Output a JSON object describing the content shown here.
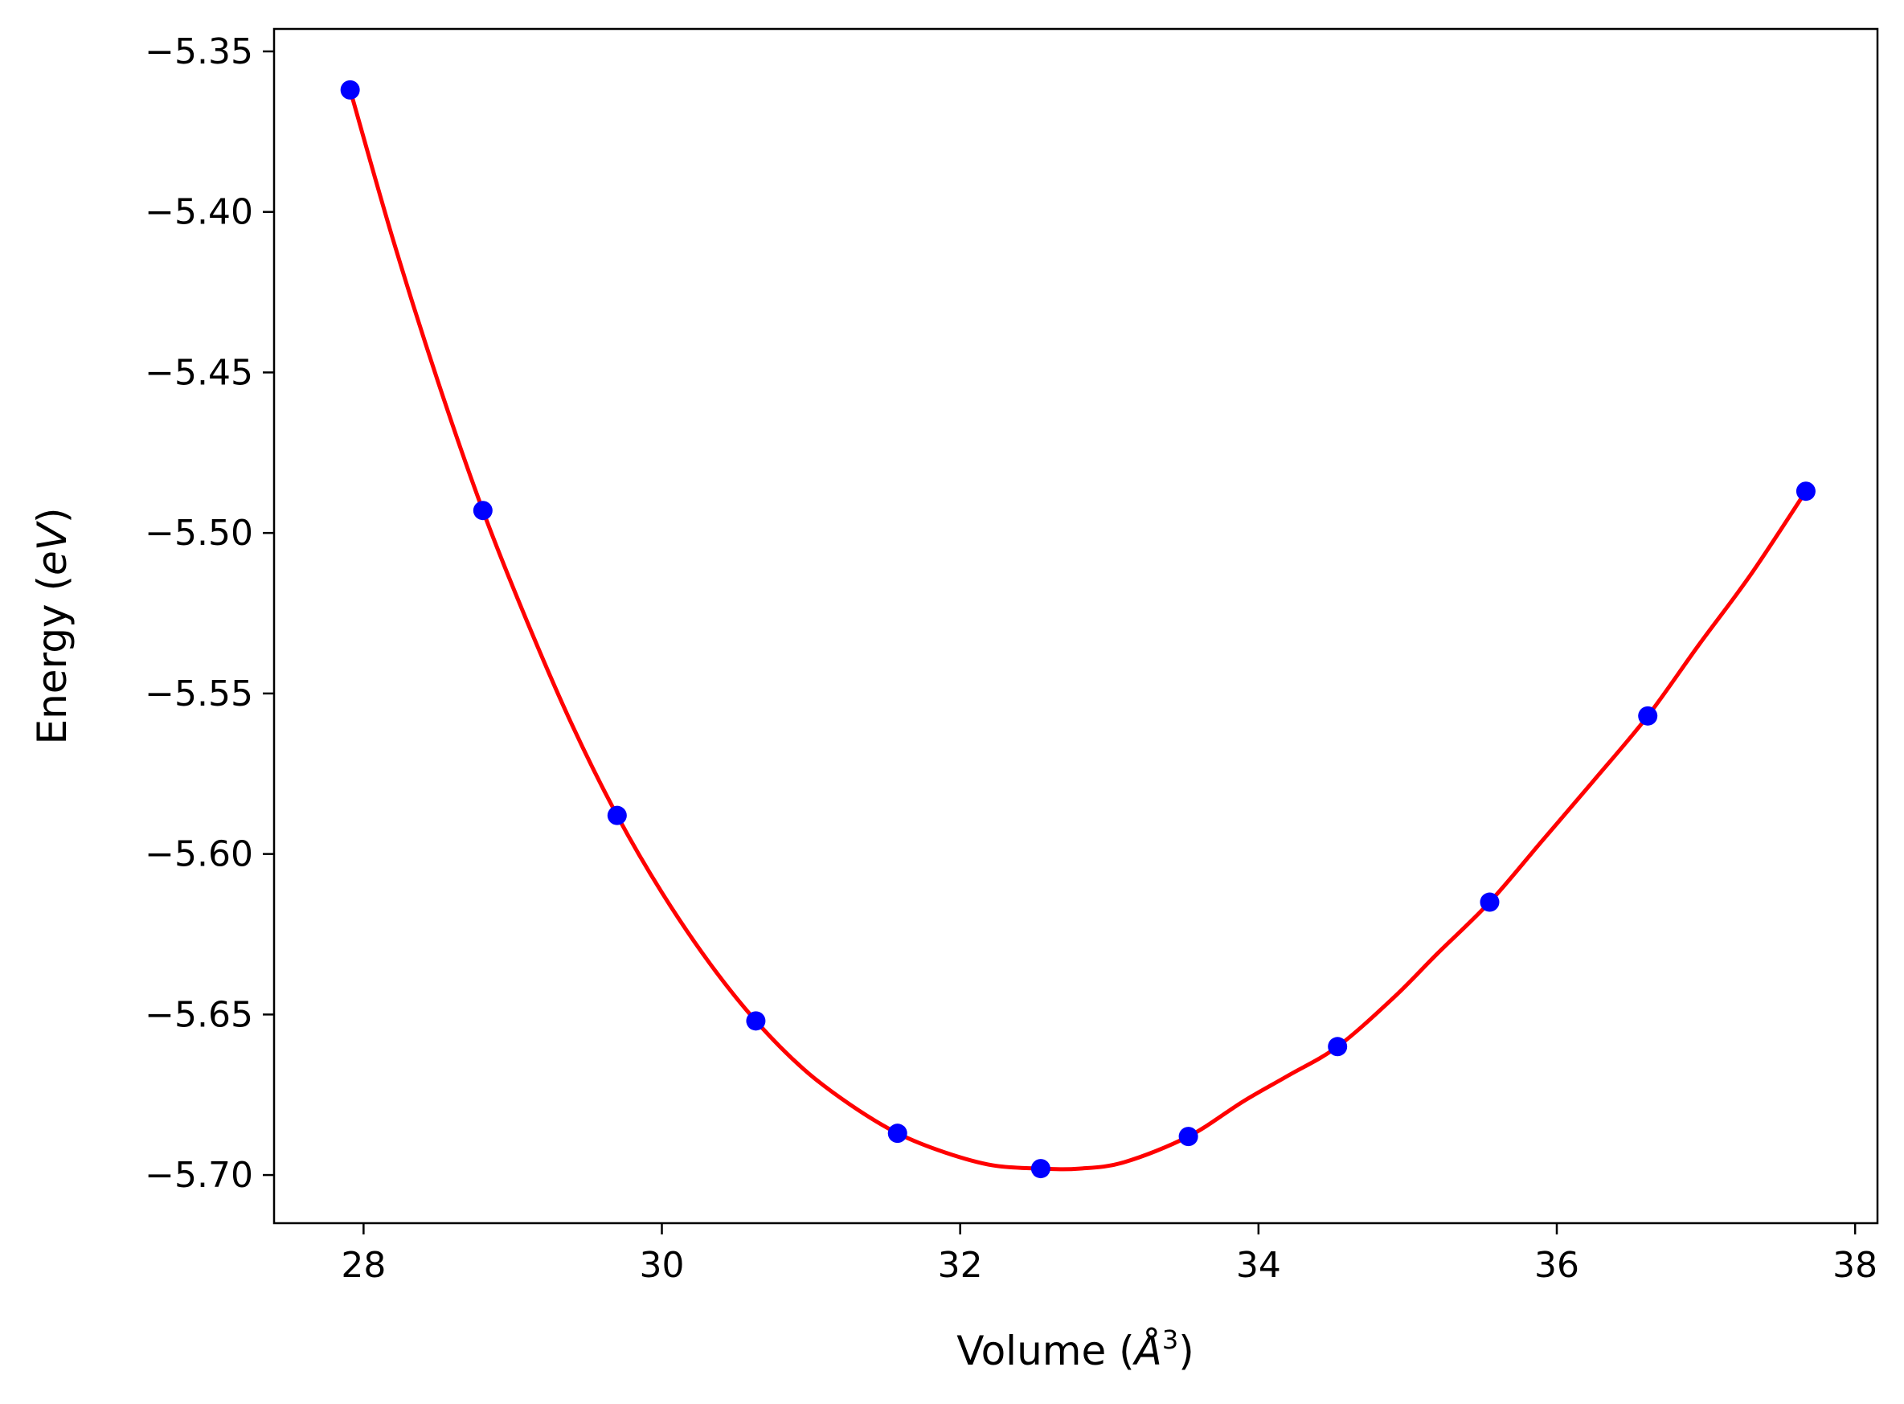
{
  "chart_data": {
    "type": "scatter",
    "title": "",
    "xlabel": "Volume (Å³)",
    "xlabel_parts": {
      "pre": "Volume (",
      "sym": "Å",
      "sup": "3",
      "post": ")"
    },
    "ylabel": "Energy (eV)",
    "ylabel_parts": {
      "pre": "Energy (",
      "sym": "eV",
      "post": ")"
    },
    "xlim": [
      27.4,
      38.15
    ],
    "ylim": [
      -5.715,
      -5.343
    ],
    "xticks": [
      28,
      30,
      32,
      34,
      36,
      38
    ],
    "xtick_labels": [
      "28",
      "30",
      "32",
      "34",
      "36",
      "38"
    ],
    "yticks": [
      -5.35,
      -5.4,
      -5.45,
      -5.5,
      -5.55,
      -5.6,
      -5.65,
      -5.7
    ],
    "ytick_labels": [
      "−5.35",
      "−5.40",
      "−5.45",
      "−5.50",
      "−5.55",
      "−5.60",
      "−5.65",
      "−5.70"
    ],
    "grid": false,
    "legend": "none",
    "series": [
      {
        "kind": "points",
        "color": "#0000ff",
        "x": [
          27.91,
          28.8,
          29.7,
          30.63,
          31.58,
          32.54,
          33.53,
          34.53,
          35.55,
          36.61,
          37.67
        ],
        "y": [
          -5.362,
          -5.493,
          -5.588,
          -5.652,
          -5.687,
          -5.698,
          -5.688,
          -5.66,
          -5.615,
          -5.557,
          -5.487
        ]
      },
      {
        "kind": "fit-line",
        "color": "#ff0000",
        "x": [
          27.91,
          28.2,
          28.5,
          28.8,
          29.1,
          29.4,
          29.7,
          30.0,
          30.32,
          30.63,
          30.95,
          31.26,
          31.58,
          31.9,
          32.22,
          32.54,
          32.8,
          33.1,
          33.53,
          33.9,
          34.2,
          34.53,
          34.9,
          35.2,
          35.55,
          35.9,
          36.25,
          36.61,
          36.95,
          37.3,
          37.67
        ],
        "y": [
          -5.362,
          -5.409,
          -5.453,
          -5.493,
          -5.528,
          -5.56,
          -5.588,
          -5.612,
          -5.634,
          -5.652,
          -5.667,
          -5.678,
          -5.687,
          -5.693,
          -5.697,
          -5.698,
          -5.698,
          -5.696,
          -5.688,
          -5.677,
          -5.669,
          -5.66,
          -5.645,
          -5.631,
          -5.615,
          -5.596,
          -5.577,
          -5.557,
          -5.535,
          -5.513,
          -5.487
        ]
      }
    ]
  }
}
